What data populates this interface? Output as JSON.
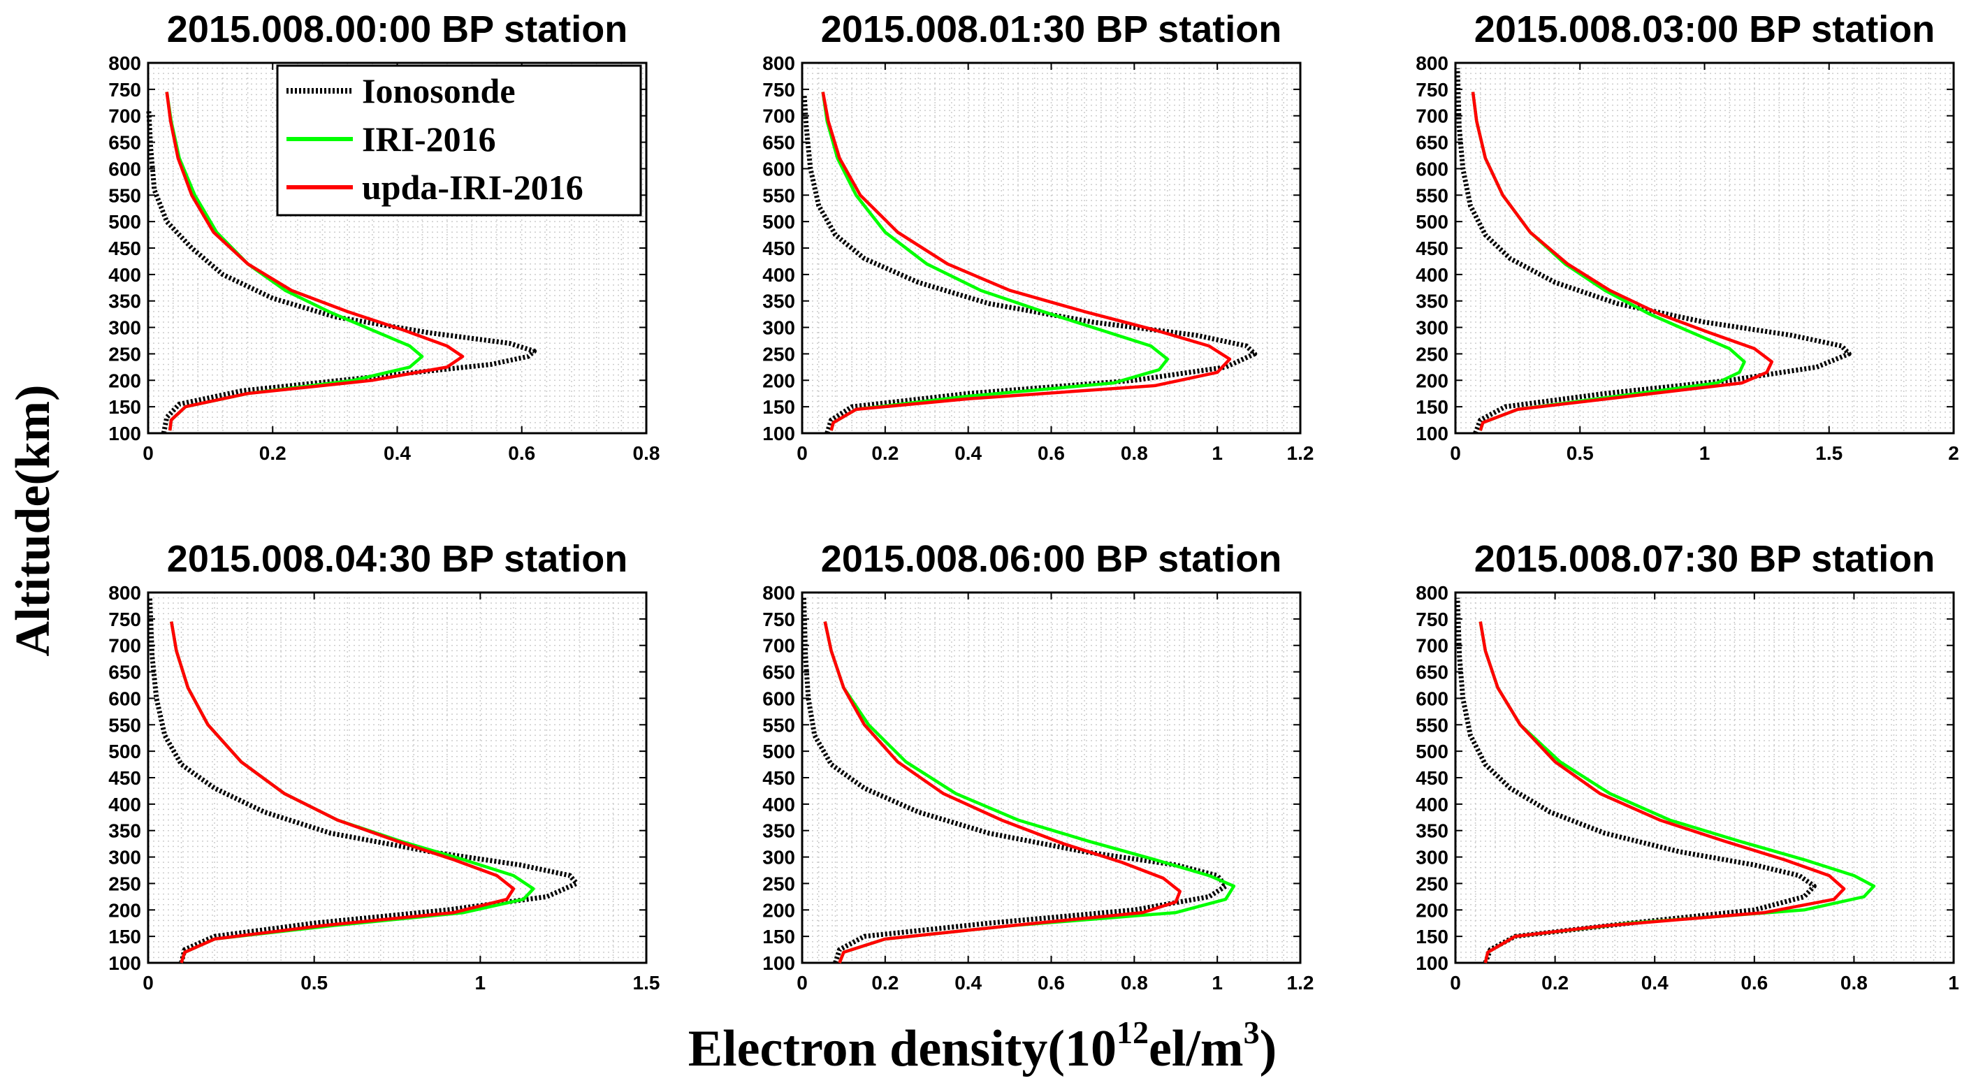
{
  "figure": {
    "ylabel": "Altitude(km)",
    "xlabel_prefix": "Electron density(10",
    "xlabel_exp": "12",
    "xlabel_unit": "el/m",
    "xlabel_unit_exp": "3",
    "xlabel_close": ")"
  },
  "legend": {
    "entries": [
      {
        "name": "Ionosonde",
        "color": "#000000",
        "style": "dotted"
      },
      {
        "name": "IRI-2016",
        "color": "#00ff00",
        "style": "solid"
      },
      {
        "name": "upda-IRI-2016",
        "color": "#ff0000",
        "style": "solid"
      }
    ]
  },
  "chart_data": [
    {
      "type": "line",
      "title": "2015.008.00:00 BP station",
      "xlim": [
        0,
        0.8
      ],
      "xticks": [
        0,
        0.2,
        0.4,
        0.6,
        0.8
      ],
      "xticklabels": [
        "0",
        "0.2",
        "0.4",
        "0.6",
        "0.8"
      ],
      "ylim": [
        100,
        800
      ],
      "yticks": [
        100,
        150,
        200,
        250,
        300,
        350,
        400,
        450,
        500,
        550,
        600,
        650,
        700,
        750,
        800
      ],
      "yticklabels": [
        "100",
        "150",
        "200",
        "250",
        "300",
        "350",
        "400",
        "450",
        "500",
        "550",
        "600",
        "650",
        "700",
        "750",
        "800"
      ],
      "grid": true,
      "series": [
        {
          "name": "Ionosonde",
          "style": "dotted",
          "color": "#000000",
          "x": [
            0.025,
            0.03,
            0.05,
            0.15,
            0.35,
            0.55,
            0.61,
            0.62,
            0.58,
            0.45,
            0.3,
            0.2,
            0.12,
            0.07,
            0.03,
            0.01,
            0.004,
            0.001
          ],
          "y": [
            100,
            130,
            155,
            180,
            205,
            230,
            245,
            255,
            270,
            290,
            320,
            355,
            400,
            450,
            500,
            560,
            640,
            710
          ]
        },
        {
          "name": "IRI-2016",
          "style": "solid",
          "color": "#00ff00",
          "x": [
            0.035,
            0.037,
            0.06,
            0.16,
            0.33,
            0.42,
            0.44,
            0.42,
            0.36,
            0.29,
            0.22,
            0.16,
            0.11,
            0.075,
            0.05,
            0.037,
            0.03
          ],
          "y": [
            105,
            125,
            150,
            175,
            200,
            225,
            245,
            265,
            295,
            330,
            370,
            420,
            480,
            550,
            620,
            690,
            745
          ]
        },
        {
          "name": "upda-IRI-2016",
          "style": "solid",
          "color": "#ff0000",
          "x": [
            0.035,
            0.037,
            0.06,
            0.16,
            0.36,
            0.48,
            0.505,
            0.48,
            0.41,
            0.32,
            0.23,
            0.16,
            0.105,
            0.07,
            0.048,
            0.036,
            0.03
          ],
          "y": [
            105,
            125,
            150,
            175,
            200,
            225,
            245,
            265,
            295,
            330,
            370,
            420,
            480,
            550,
            620,
            690,
            745
          ]
        }
      ]
    },
    {
      "type": "line",
      "title": "2015.008.01:30 BP station",
      "xlim": [
        0,
        1.2
      ],
      "xticks": [
        0,
        0.2,
        0.4,
        0.6,
        0.8,
        1.0,
        1.2
      ],
      "xticklabels": [
        "0",
        "0.2",
        "0.4",
        "0.6",
        "0.8",
        "1",
        "1.2"
      ],
      "ylim": [
        100,
        800
      ],
      "yticks": [
        100,
        150,
        200,
        250,
        300,
        350,
        400,
        450,
        500,
        550,
        600,
        650,
        700,
        750,
        800
      ],
      "yticklabels": [
        "100",
        "150",
        "200",
        "250",
        "300",
        "350",
        "400",
        "450",
        "500",
        "550",
        "600",
        "650",
        "700",
        "750",
        "800"
      ],
      "grid": true,
      "series": [
        {
          "name": "Ionosonde",
          "style": "dotted",
          "color": "#000000",
          "x": [
            0.06,
            0.07,
            0.12,
            0.4,
            0.8,
            1.02,
            1.09,
            1.07,
            0.95,
            0.7,
            0.45,
            0.28,
            0.15,
            0.08,
            0.04,
            0.02,
            0.01,
            0.005
          ],
          "y": [
            100,
            125,
            150,
            175,
            200,
            225,
            250,
            265,
            285,
            310,
            345,
            385,
            430,
            475,
            530,
            600,
            680,
            740
          ]
        },
        {
          "name": "IRI-2016",
          "style": "solid",
          "color": "#00ff00",
          "x": [
            0.07,
            0.075,
            0.13,
            0.4,
            0.75,
            0.86,
            0.88,
            0.84,
            0.72,
            0.58,
            0.43,
            0.3,
            0.2,
            0.13,
            0.085,
            0.06,
            0.05
          ],
          "y": [
            105,
            120,
            145,
            170,
            195,
            220,
            240,
            265,
            295,
            330,
            370,
            420,
            480,
            550,
            620,
            690,
            745
          ]
        },
        {
          "name": "upda-IRI-2016",
          "style": "solid",
          "color": "#ff0000",
          "x": [
            0.07,
            0.075,
            0.13,
            0.4,
            0.85,
            1.0,
            1.03,
            0.98,
            0.85,
            0.68,
            0.5,
            0.35,
            0.23,
            0.14,
            0.09,
            0.063,
            0.05
          ],
          "y": [
            105,
            120,
            145,
            165,
            190,
            215,
            240,
            265,
            295,
            330,
            370,
            420,
            480,
            550,
            620,
            690,
            745
          ]
        }
      ]
    },
    {
      "type": "line",
      "title": "2015.008.03:00 BP station",
      "xlim": [
        0,
        2
      ],
      "xticks": [
        0,
        0.5,
        1.0,
        1.5,
        2.0
      ],
      "xticklabels": [
        "0",
        "0.5",
        "1",
        "1.5",
        "2"
      ],
      "ylim": [
        100,
        800
      ],
      "yticks": [
        100,
        150,
        200,
        250,
        300,
        350,
        400,
        450,
        500,
        550,
        600,
        650,
        700,
        750,
        800
      ],
      "yticklabels": [
        "100",
        "150",
        "200",
        "250",
        "300",
        "350",
        "400",
        "450",
        "500",
        "550",
        "600",
        "650",
        "700",
        "750",
        "800"
      ],
      "grid": true,
      "series": [
        {
          "name": "Ionosonde",
          "style": "dotted",
          "color": "#000000",
          "x": [
            0.08,
            0.1,
            0.2,
            0.6,
            1.1,
            1.45,
            1.58,
            1.55,
            1.35,
            1.0,
            0.65,
            0.4,
            0.22,
            0.12,
            0.06,
            0.03,
            0.015,
            0.008
          ],
          "y": [
            100,
            125,
            150,
            175,
            200,
            225,
            250,
            265,
            285,
            310,
            345,
            385,
            430,
            475,
            530,
            600,
            680,
            790
          ]
        },
        {
          "name": "IRI-2016",
          "style": "solid",
          "color": "#00ff00",
          "x": [
            0.1,
            0.11,
            0.25,
            0.65,
            1.05,
            1.14,
            1.16,
            1.1,
            0.95,
            0.78,
            0.6,
            0.44,
            0.3,
            0.19,
            0.12,
            0.085,
            0.07
          ],
          "y": [
            105,
            120,
            145,
            170,
            195,
            215,
            235,
            260,
            290,
            325,
            370,
            420,
            480,
            550,
            620,
            690,
            745
          ]
        },
        {
          "name": "upda-IRI-2016",
          "style": "solid",
          "color": "#ff0000",
          "x": [
            0.1,
            0.11,
            0.25,
            0.7,
            1.15,
            1.25,
            1.27,
            1.2,
            1.02,
            0.82,
            0.62,
            0.45,
            0.3,
            0.19,
            0.12,
            0.085,
            0.07
          ],
          "y": [
            105,
            120,
            145,
            170,
            195,
            215,
            235,
            260,
            290,
            325,
            370,
            420,
            480,
            550,
            620,
            690,
            745
          ]
        }
      ]
    },
    {
      "type": "line",
      "title": "2015.008.04:30 BP station",
      "xlim": [
        0,
        1.5
      ],
      "xticks": [
        0,
        0.5,
        1.0,
        1.5
      ],
      "xticklabels": [
        "0",
        "0.5",
        "1",
        "1.5"
      ],
      "ylim": [
        100,
        800
      ],
      "yticks": [
        100,
        150,
        200,
        250,
        300,
        350,
        400,
        450,
        500,
        550,
        600,
        650,
        700,
        750,
        800
      ],
      "yticklabels": [
        "100",
        "150",
        "200",
        "250",
        "300",
        "350",
        "400",
        "450",
        "500",
        "550",
        "600",
        "650",
        "700",
        "750",
        "800"
      ],
      "grid": true,
      "series": [
        {
          "name": "Ionosonde",
          "style": "dotted",
          "color": "#000000",
          "x": [
            0.1,
            0.11,
            0.2,
            0.5,
            0.9,
            1.2,
            1.29,
            1.27,
            1.12,
            0.85,
            0.55,
            0.35,
            0.2,
            0.1,
            0.05,
            0.025,
            0.012,
            0.005
          ],
          "y": [
            100,
            125,
            150,
            175,
            200,
            225,
            250,
            265,
            285,
            310,
            345,
            385,
            430,
            475,
            530,
            600,
            680,
            790
          ]
        },
        {
          "name": "IRI-2016",
          "style": "solid",
          "color": "#00ff00",
          "x": [
            0.1,
            0.11,
            0.2,
            0.55,
            0.95,
            1.13,
            1.16,
            1.1,
            0.95,
            0.76,
            0.57,
            0.41,
            0.28,
            0.18,
            0.12,
            0.085,
            0.07
          ],
          "y": [
            100,
            120,
            145,
            170,
            195,
            220,
            240,
            265,
            295,
            330,
            370,
            420,
            480,
            550,
            620,
            690,
            745
          ]
        },
        {
          "name": "upda-IRI-2016",
          "style": "solid",
          "color": "#ff0000",
          "x": [
            0.1,
            0.11,
            0.2,
            0.52,
            0.92,
            1.08,
            1.1,
            1.05,
            0.92,
            0.75,
            0.57,
            0.41,
            0.28,
            0.18,
            0.12,
            0.085,
            0.07
          ],
          "y": [
            100,
            120,
            145,
            170,
            195,
            220,
            240,
            265,
            295,
            330,
            370,
            420,
            480,
            550,
            620,
            690,
            745
          ]
        }
      ]
    },
    {
      "type": "line",
      "title": "2015.008.06:00 BP station",
      "xlim": [
        0,
        1.2
      ],
      "xticks": [
        0,
        0.2,
        0.4,
        0.6,
        0.8,
        1.0,
        1.2
      ],
      "xticklabels": [
        "0",
        "0.2",
        "0.4",
        "0.6",
        "0.8",
        "1",
        "1.2"
      ],
      "ylim": [
        100,
        800
      ],
      "yticks": [
        100,
        150,
        200,
        250,
        300,
        350,
        400,
        450,
        500,
        550,
        600,
        650,
        700,
        750,
        800
      ],
      "yticklabels": [
        "100",
        "150",
        "200",
        "250",
        "300",
        "350",
        "400",
        "450",
        "500",
        "550",
        "600",
        "650",
        "700",
        "750",
        "800"
      ],
      "grid": true,
      "series": [
        {
          "name": "Ionosonde",
          "style": "dotted",
          "color": "#000000",
          "x": [
            0.08,
            0.09,
            0.15,
            0.45,
            0.8,
            0.98,
            1.02,
            1.0,
            0.9,
            0.68,
            0.45,
            0.28,
            0.15,
            0.07,
            0.03,
            0.015,
            0.008,
            0.004
          ],
          "y": [
            100,
            125,
            150,
            175,
            200,
            225,
            245,
            265,
            285,
            310,
            345,
            385,
            430,
            475,
            530,
            600,
            680,
            790
          ]
        },
        {
          "name": "IRI-2016",
          "style": "solid",
          "color": "#00ff00",
          "x": [
            0.09,
            0.1,
            0.2,
            0.5,
            0.9,
            1.02,
            1.04,
            0.98,
            0.85,
            0.69,
            0.52,
            0.37,
            0.25,
            0.16,
            0.1,
            0.07,
            0.055
          ],
          "y": [
            100,
            120,
            145,
            170,
            195,
            220,
            245,
            265,
            295,
            330,
            370,
            420,
            480,
            550,
            620,
            690,
            745
          ]
        },
        {
          "name": "upda-IRI-2016",
          "style": "solid",
          "color": "#ff0000",
          "x": [
            0.09,
            0.1,
            0.2,
            0.5,
            0.82,
            0.9,
            0.91,
            0.87,
            0.77,
            0.63,
            0.48,
            0.34,
            0.23,
            0.15,
            0.1,
            0.07,
            0.055
          ],
          "y": [
            100,
            120,
            145,
            170,
            195,
            215,
            235,
            260,
            290,
            325,
            370,
            420,
            480,
            550,
            620,
            690,
            745
          ]
        }
      ]
    },
    {
      "type": "line",
      "title": "2015.008.07:30 BP station",
      "xlim": [
        0,
        1
      ],
      "xticks": [
        0,
        0.2,
        0.4,
        0.6,
        0.8,
        1.0
      ],
      "xticklabels": [
        "0",
        "0.2",
        "0.4",
        "0.6",
        "0.8",
        "1"
      ],
      "ylim": [
        100,
        800
      ],
      "yticks": [
        100,
        150,
        200,
        250,
        300,
        350,
        400,
        450,
        500,
        550,
        600,
        650,
        700,
        750,
        800
      ],
      "yticklabels": [
        "100",
        "150",
        "200",
        "250",
        "300",
        "350",
        "400",
        "450",
        "500",
        "550",
        "600",
        "650",
        "700",
        "750",
        "800"
      ],
      "grid": true,
      "series": [
        {
          "name": "Ionosonde",
          "style": "dotted",
          "color": "#000000",
          "x": [
            0.06,
            0.07,
            0.12,
            0.35,
            0.6,
            0.7,
            0.72,
            0.69,
            0.6,
            0.45,
            0.3,
            0.19,
            0.11,
            0.06,
            0.03,
            0.015,
            0.008,
            0.004
          ],
          "y": [
            100,
            125,
            150,
            175,
            200,
            225,
            245,
            265,
            285,
            310,
            345,
            385,
            430,
            475,
            530,
            600,
            680,
            790
          ]
        },
        {
          "name": "IRI-2016",
          "style": "solid",
          "color": "#00ff00",
          "x": [
            0.06,
            0.065,
            0.12,
            0.35,
            0.7,
            0.82,
            0.84,
            0.8,
            0.7,
            0.57,
            0.43,
            0.31,
            0.21,
            0.13,
            0.085,
            0.06,
            0.05
          ],
          "y": [
            100,
            120,
            150,
            175,
            200,
            225,
            245,
            265,
            295,
            330,
            370,
            420,
            480,
            550,
            620,
            690,
            745
          ]
        },
        {
          "name": "upda-IRI-2016",
          "style": "solid",
          "color": "#ff0000",
          "x": [
            0.06,
            0.065,
            0.12,
            0.3,
            0.62,
            0.76,
            0.78,
            0.75,
            0.66,
            0.54,
            0.41,
            0.29,
            0.2,
            0.13,
            0.085,
            0.06,
            0.05
          ],
          "y": [
            100,
            120,
            150,
            170,
            195,
            220,
            240,
            265,
            295,
            330,
            370,
            420,
            480,
            550,
            620,
            690,
            745
          ]
        }
      ]
    }
  ]
}
